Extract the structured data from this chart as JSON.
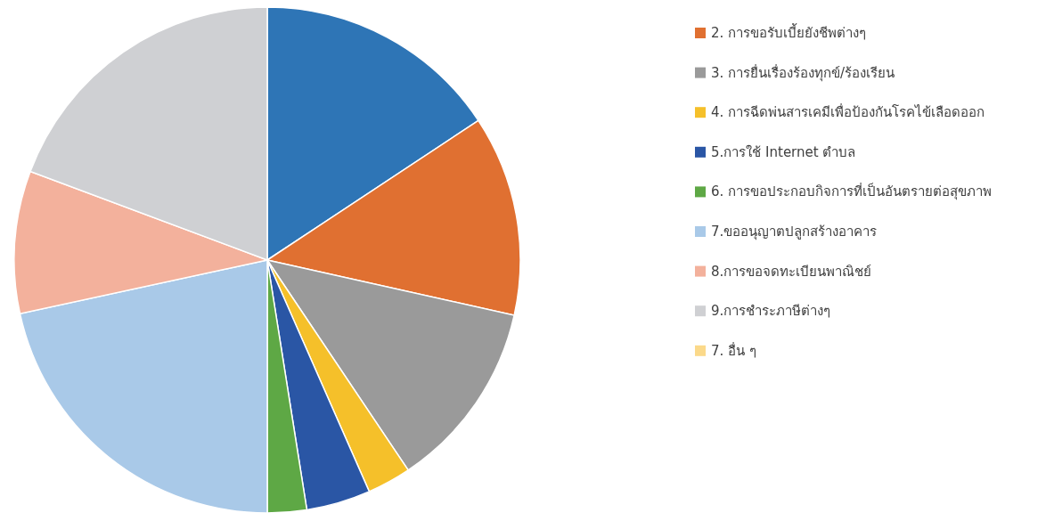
{
  "chart_data": {
    "type": "pie",
    "categories": [
      null,
      "2. การขอรับเบี้ยยังชีพต่างๆ",
      "3. การยื่นเรื่องร้องทุกข์/ร้องเรียน",
      "4. การฉีดพ่นสารเคมีเพื่อป้องกันโรคไข้เลือดออก",
      "5.การใช้ Internet ตำบล",
      "6. การขอประกอบกิจการที่เป็นอันตรายต่อสุขภาพ",
      "7.ขออนุญาตปลูกสร้างอาคาร",
      "8.การขอจดทะเบียนพาณิชย์",
      "9.การชำระภาษีต่างๆ",
      "7. อื่น ๆ"
    ],
    "values": [
      15.7,
      12.8,
      12.1,
      2.8,
      4.1,
      2.5,
      21.6,
      9.1,
      19.3,
      0
    ],
    "colors": [
      "#2e75b6",
      "#e07031",
      "#9a9a9a",
      "#f5c02a",
      "#2a56a5",
      "#5ea845",
      "#a9c9e8",
      "#f3b19c",
      "#cfd0d3",
      "#fbd98a"
    ],
    "legend": "right"
  }
}
